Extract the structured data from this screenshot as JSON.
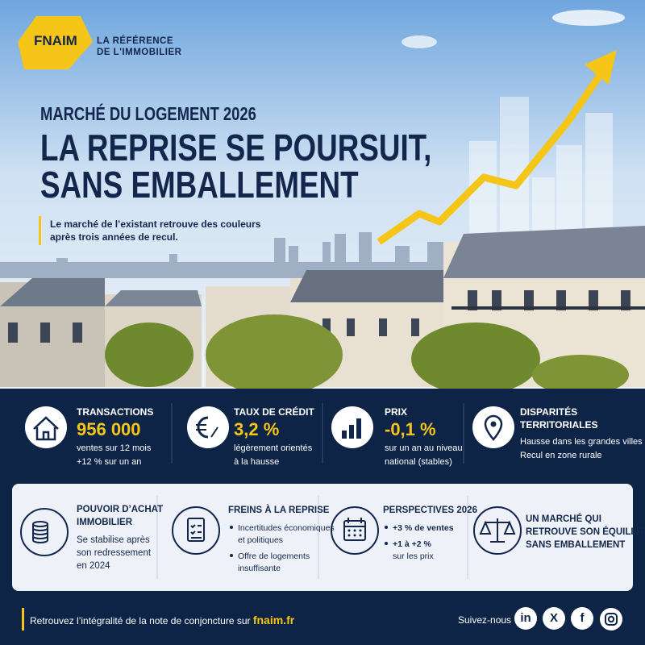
{
  "header": {
    "logo": "FNAIM",
    "tagline": [
      "LA RÉFÉRENCE",
      "DE L'IMMOBILIER"
    ],
    "kicker": "MARCHÉ DU LOGEMENT 2026",
    "title": [
      "LA REPRISE SE POURSUIT,",
      "SANS EMBALLEMENT"
    ],
    "subtitle": [
      "Le marché de l’existant retrouve des couleurs",
      "après trois années de recul."
    ]
  },
  "stats": [
    {
      "label": [
        "TRANSACTIONS"
      ],
      "value": "956 000",
      "notes": [
        "ventes sur 12 mois",
        "+12 % sur un an"
      ]
    },
    {
      "label": [
        "TAUX DE CRÉDIT"
      ],
      "value": "3,2 %",
      "notes": [
        "légèrement orientés",
        "à la hausse"
      ]
    },
    {
      "label": [
        "PRIX"
      ],
      "value": "-0,1 %",
      "notes": [
        "sur un an au niveau",
        "national (stables)"
      ]
    },
    {
      "label": [
        "DISPARITÉS",
        "TERRITORIALES"
      ],
      "notes": [
        "Hausse dans les grandes villes",
        "Recul en zone rurale"
      ]
    }
  ],
  "panels": [
    {
      "title": [
        "POUVOIR D’ACHAT",
        "IMMOBILIER"
      ],
      "text": [
        "Se stabilise après",
        "son redressement",
        "en 2024"
      ]
    },
    {
      "title": [
        "FREINS À LA REPRISE"
      ],
      "items": [
        [
          "Incertitudes économiques",
          "et politiques"
        ],
        [
          "Offre de logements",
          "insuffisante"
        ]
      ]
    },
    {
      "title": [
        "PERSPECTIVES 2026"
      ],
      "items": [
        [
          "+3 % de ventes"
        ],
        [
          "+1 à +2 %",
          "sur les prix"
        ]
      ]
    },
    {
      "title": [
        "UN MARCHÉ QUI",
        "RETROUVE SON ÉQUILIBRE,",
        "SANS EMBALLEMENT"
      ]
    }
  ],
  "footer": {
    "text": "Retrouvez l’intégralité de la note de conjoncture sur",
    "link": "fnaim.fr",
    "follow": "Suivez-nous",
    "social": [
      "in",
      "X",
      "f"
    ]
  }
}
